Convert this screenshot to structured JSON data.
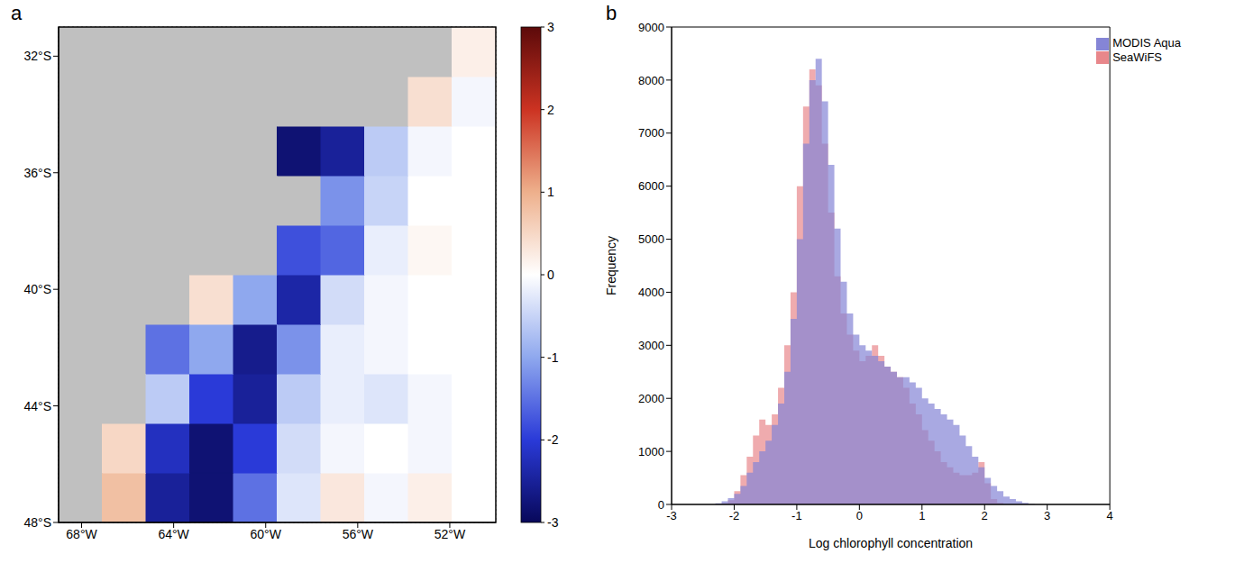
{
  "chart_data": [
    {
      "type": "heatmap",
      "panel": "a",
      "xlim": [
        -69,
        -50
      ],
      "ylim": [
        -48,
        -31
      ],
      "xticks": [
        {
          "value": -68,
          "label": "68°W"
        },
        {
          "value": -64,
          "label": "64°W"
        },
        {
          "value": -60,
          "label": "60°W"
        },
        {
          "value": -56,
          "label": "56°W"
        },
        {
          "value": -52,
          "label": "52°W"
        }
      ],
      "yticks": [
        {
          "value": -48,
          "label": "48°S"
        },
        {
          "value": -44,
          "label": "44°S"
        },
        {
          "value": -40,
          "label": "40°S"
        },
        {
          "value": -36,
          "label": "36°S"
        },
        {
          "value": -32,
          "label": "32°S"
        }
      ],
      "grid": true,
      "lon_edges": [
        -69,
        -67.1,
        -65.2,
        -63.3,
        -61.4,
        -59.5,
        -57.6,
        -55.7,
        -53.8,
        -51.9,
        -50
      ],
      "lat_edges": [
        -48,
        -46.3,
        -44.6,
        -42.9,
        -41.2,
        -39.5,
        -37.8,
        -36.1,
        -34.4,
        -32.7,
        -31
      ],
      "cells": [
        [
          null,
          0.8,
          -2.5,
          -2.8,
          -1.5,
          -0.3,
          0.3,
          -0.1,
          0.2,
          0
        ],
        [
          null,
          0.5,
          -2.2,
          -2.8,
          -2.0,
          -0.4,
          -0.1,
          0,
          -0.1,
          0
        ],
        [
          null,
          null,
          -0.6,
          -2.0,
          -2.5,
          -0.6,
          -0.2,
          -0.3,
          -0.1,
          0
        ],
        [
          null,
          null,
          -1.5,
          -1.0,
          -2.6,
          -1.2,
          -0.2,
          -0.1,
          0,
          0
        ],
        [
          null,
          null,
          null,
          0.4,
          -1.0,
          -2.4,
          -0.4,
          -0.1,
          0,
          0
        ],
        [
          null,
          null,
          null,
          null,
          null,
          -1.8,
          -1.6,
          -0.2,
          0.1,
          0
        ],
        [
          null,
          null,
          null,
          null,
          null,
          null,
          -1.2,
          -0.5,
          0,
          0
        ],
        [
          null,
          null,
          null,
          null,
          null,
          -2.8,
          -2.5,
          -0.6,
          -0.1,
          0
        ],
        [
          null,
          null,
          null,
          null,
          null,
          null,
          null,
          null,
          0.4,
          -0.1
        ],
        [
          null,
          null,
          null,
          null,
          null,
          null,
          null,
          null,
          null,
          0.2
        ]
      ],
      "colorbar": {
        "range": [
          -3,
          3
        ],
        "ticks": [
          3,
          2,
          1,
          0,
          -1,
          -2,
          -3
        ]
      }
    },
    {
      "type": "histogram",
      "panel": "b",
      "x_label": "Log chlorophyll concentration",
      "y_label": "Frequency",
      "xlim": [
        -3,
        4
      ],
      "xticks": [
        -3,
        -2,
        -1,
        0,
        1,
        2,
        3,
        4
      ],
      "ylim": [
        0,
        9000
      ],
      "yticks": [
        0,
        1000,
        2000,
        3000,
        4000,
        5000,
        6000,
        7000,
        8000,
        9000
      ],
      "legend": "upper right",
      "bins": [
        -2.5,
        -2.4,
        -2.3,
        -2.2,
        -2.1,
        -2.0,
        -1.9,
        -1.8,
        -1.7,
        -1.6,
        -1.5,
        -1.4,
        -1.3,
        -1.2,
        -1.1,
        -1.0,
        -0.9,
        -0.8,
        -0.7,
        -0.6,
        -0.5,
        -0.4,
        -0.3,
        -0.2,
        -0.1,
        0.0,
        0.1,
        0.2,
        0.3,
        0.4,
        0.5,
        0.6,
        0.7,
        0.8,
        0.9,
        1.0,
        1.1,
        1.2,
        1.3,
        1.4,
        1.5,
        1.6,
        1.7,
        1.8,
        1.9,
        2.0,
        2.1,
        2.2,
        2.3,
        2.4,
        2.5,
        2.6,
        2.7,
        2.8,
        2.9,
        3.0
      ],
      "series": [
        {
          "name": "SeaWiFS",
          "color": "#e8878b",
          "values": [
            0,
            0,
            0,
            20,
            80,
            250,
            550,
            900,
            1300,
            1600,
            1500,
            1700,
            2200,
            3000,
            4000,
            6000,
            7500,
            8200,
            7900,
            6800,
            5500,
            4300,
            3600,
            3200,
            2900,
            2700,
            2800,
            3000,
            2800,
            2600,
            2500,
            2400,
            2200,
            1900,
            1700,
            1400,
            1200,
            1000,
            800,
            700,
            600,
            550,
            550,
            600,
            800,
            400,
            100,
            30,
            0,
            0,
            0,
            0,
            0,
            0,
            0
          ]
        },
        {
          "name": "MODIS Aqua",
          "color": "#8585d6",
          "values": [
            0,
            0,
            20,
            60,
            120,
            200,
            350,
            600,
            800,
            1000,
            1200,
            1500,
            1900,
            2500,
            3500,
            5000,
            6800,
            8000,
            8400,
            7600,
            6400,
            5200,
            4200,
            3600,
            3200,
            3000,
            2900,
            2800,
            2700,
            2600,
            2500,
            2400,
            2400,
            2300,
            2200,
            2000,
            1900,
            1800,
            1700,
            1600,
            1500,
            1300,
            1100,
            900,
            700,
            500,
            350,
            250,
            150,
            100,
            60,
            30,
            10,
            0,
            0
          ]
        }
      ]
    }
  ]
}
